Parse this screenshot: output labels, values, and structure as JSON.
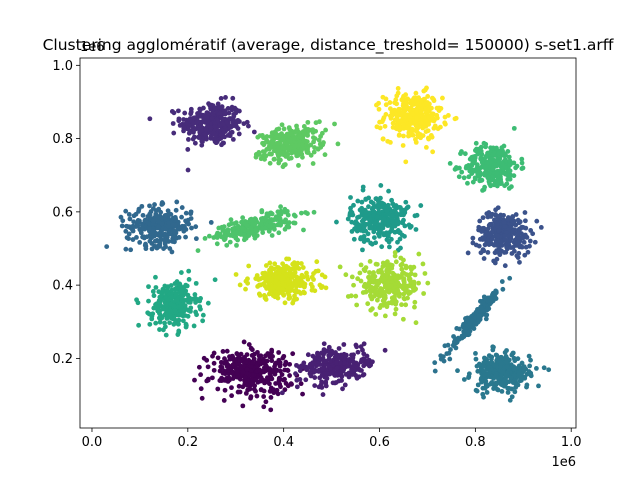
{
  "chart_data": {
    "type": "scatter",
    "title": "Clustering agglomératif (average, distance_treshold= 150000) s-set1.arff",
    "xlabel": "",
    "ylabel": "",
    "xlim": [
      -25000,
      1010000
    ],
    "ylim": [
      0.01,
      1.02
    ],
    "x_offset_text": "1e6",
    "y_offset_text": "1e6",
    "x_ticks": [
      0.0,
      0.2,
      0.4,
      0.6,
      0.8,
      1.0
    ],
    "x_tick_labels": [
      "0.0",
      "0.2",
      "0.4",
      "0.6",
      "0.8",
      "1.0"
    ],
    "y_ticks": [
      0.2,
      0.4,
      0.6,
      0.8,
      1.0
    ],
    "y_tick_labels": [
      "0.2",
      "0.4",
      "0.6",
      "0.8",
      "1.0"
    ],
    "grid": false,
    "legend": "none",
    "marker_size_note": "small dots",
    "clusters": [
      {
        "cx": 0.25,
        "cy": 0.84,
        "sx": 0.032,
        "sy": 0.03,
        "rot": 0,
        "n": 300,
        "color": "#472c7a"
      },
      {
        "cx": 0.415,
        "cy": 0.785,
        "sx": 0.034,
        "sy": 0.022,
        "rot": 15,
        "n": 260,
        "color": "#5ec962"
      },
      {
        "cx": 0.67,
        "cy": 0.86,
        "sx": 0.03,
        "sy": 0.032,
        "rot": 0,
        "n": 300,
        "color": "#fde725"
      },
      {
        "cx": 0.835,
        "cy": 0.725,
        "sx": 0.028,
        "sy": 0.03,
        "rot": 0,
        "n": 280,
        "color": "#3dbc74"
      },
      {
        "cx": 0.14,
        "cy": 0.56,
        "sx": 0.034,
        "sy": 0.026,
        "rot": 0,
        "n": 280,
        "color": "#31688e"
      },
      {
        "cx": 0.34,
        "cy": 0.56,
        "sx": 0.045,
        "sy": 0.014,
        "rot": 18,
        "n": 250,
        "color": "#4ec36b"
      },
      {
        "cx": 0.6,
        "cy": 0.58,
        "sx": 0.03,
        "sy": 0.032,
        "rot": 0,
        "n": 280,
        "color": "#1f9a8a"
      },
      {
        "cx": 0.86,
        "cy": 0.54,
        "sx": 0.028,
        "sy": 0.03,
        "rot": 0,
        "n": 280,
        "color": "#3b528b"
      },
      {
        "cx": 0.17,
        "cy": 0.345,
        "sx": 0.024,
        "sy": 0.032,
        "rot": 0,
        "n": 260,
        "color": "#22a884"
      },
      {
        "cx": 0.4,
        "cy": 0.41,
        "sx": 0.036,
        "sy": 0.024,
        "rot": 0,
        "n": 280,
        "color": "#d5e21a"
      },
      {
        "cx": 0.62,
        "cy": 0.4,
        "sx": 0.034,
        "sy": 0.03,
        "rot": 0,
        "n": 280,
        "color": "#a5db36"
      },
      {
        "cx": 0.8,
        "cy": 0.31,
        "sx": 0.05,
        "sy": 0.006,
        "rot": 58,
        "n": 200,
        "color": "#2c728e"
      },
      {
        "cx": 0.33,
        "cy": 0.165,
        "sx": 0.042,
        "sy": 0.03,
        "rot": 0,
        "n": 320,
        "color": "#440154"
      },
      {
        "cx": 0.51,
        "cy": 0.18,
        "sx": 0.036,
        "sy": 0.024,
        "rot": 18,
        "n": 270,
        "color": "#482173"
      },
      {
        "cx": 0.855,
        "cy": 0.16,
        "sx": 0.03,
        "sy": 0.026,
        "rot": 0,
        "n": 280,
        "color": "#2a788e"
      }
    ]
  }
}
